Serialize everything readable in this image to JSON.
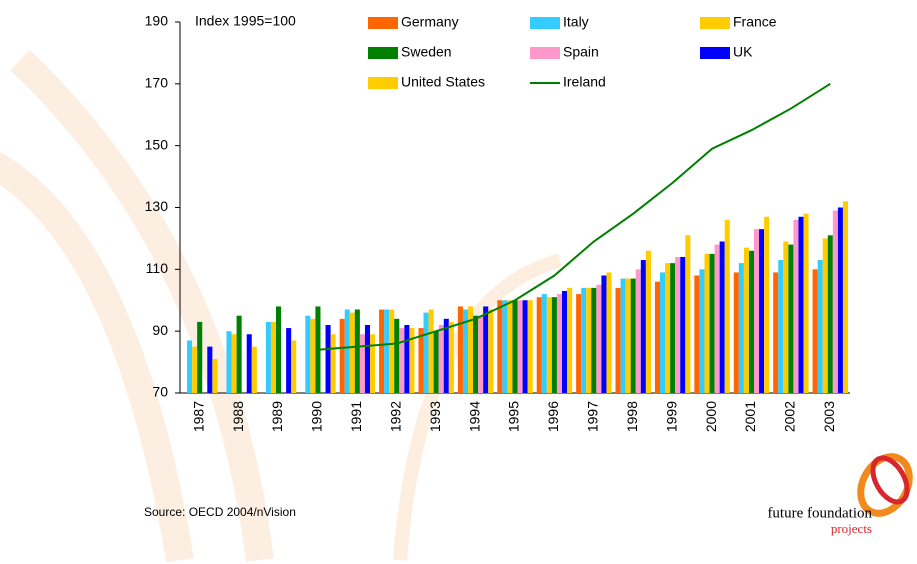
{
  "chart_data": {
    "type": "bar",
    "annotation": "Index 1995=100",
    "source": "Source: OECD 2004/nVision",
    "categories": [
      "1987",
      "1988",
      "1989",
      "1990",
      "1991",
      "1992",
      "1993",
      "1994",
      "1995",
      "1996",
      "1997",
      "1998",
      "1999",
      "2000",
      "2001",
      "2002",
      "2003"
    ],
    "ylim": [
      70,
      190
    ],
    "yticks": [
      70,
      90,
      110,
      130,
      150,
      170,
      190
    ],
    "grid": false,
    "series": [
      {
        "name": "Germany",
        "color": "#ff6600",
        "values": [
          null,
          null,
          null,
          null,
          94,
          97,
          91,
          98,
          100,
          101,
          102,
          104,
          106,
          108,
          109,
          109,
          110
        ]
      },
      {
        "name": "Italy",
        "color": "#33ccff",
        "values": [
          87,
          90,
          93,
          95,
          97,
          97,
          96,
          97,
          100,
          102,
          104,
          107,
          109,
          110,
          112,
          113,
          113
        ]
      },
      {
        "name": "France",
        "color": "#ffcc00",
        "values": [
          85,
          89,
          93,
          94,
          96,
          97,
          97,
          98,
          100,
          101,
          104,
          107,
          112,
          115,
          117,
          119,
          120
        ]
      },
      {
        "name": "Sweden",
        "color": "#008000",
        "values": [
          93,
          95,
          98,
          98,
          97,
          94,
          90,
          95,
          100,
          101,
          104,
          107,
          112,
          115,
          116,
          118,
          121
        ]
      },
      {
        "name": "Spain",
        "color": "#ff99cc",
        "values": [
          null,
          null,
          null,
          null,
          89,
          91,
          92,
          95,
          100,
          102,
          105,
          110,
          114,
          118,
          123,
          126,
          129
        ]
      },
      {
        "name": "UK",
        "color": "#0000ff",
        "values": [
          85,
          89,
          91,
          92,
          92,
          92,
          94,
          98,
          100,
          103,
          108,
          113,
          114,
          119,
          123,
          127,
          130
        ]
      },
      {
        "name": "United States",
        "color": "#ffcc00",
        "values": [
          81,
          85,
          87,
          89,
          89,
          91,
          93,
          97,
          100,
          104,
          109,
          116,
          121,
          126,
          127,
          128,
          132
        ]
      },
      {
        "name": "Ireland",
        "color": "#008000",
        "type": "line",
        "values": [
          null,
          null,
          null,
          84,
          85,
          86,
          90,
          94,
          100,
          108,
          119,
          128,
          138,
          149,
          155,
          162,
          170
        ]
      }
    ]
  },
  "logo": {
    "name": "future foundation",
    "tagline": "projects"
  }
}
